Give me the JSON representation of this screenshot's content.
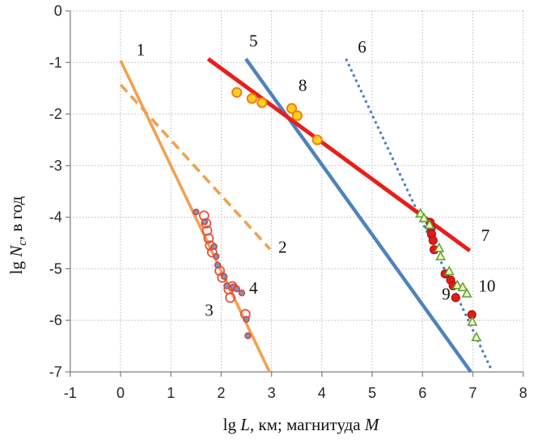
{
  "chart_data": {
    "type": "scatter",
    "title": "",
    "xlabel": "lg L, км; магнитуда M",
    "ylabel": "lg Nc, в год",
    "xlabel_parts": [
      {
        "t": "lg "
      },
      {
        "t": "L",
        "i": true
      },
      {
        "t": ", км; магнитуда "
      },
      {
        "t": "M",
        "i": true
      }
    ],
    "ylabel_parts": [
      {
        "t": "lg "
      },
      {
        "t": "N",
        "i": true
      },
      {
        "t": "c",
        "i": true,
        "sub": true
      },
      {
        "t": ", в год"
      }
    ],
    "xlim": [
      -1,
      8
    ],
    "ylim": [
      -7,
      0
    ],
    "xticks": [
      -1,
      0,
      1,
      2,
      3,
      4,
      5,
      6,
      7,
      8
    ],
    "yticks": [
      0,
      -1,
      -2,
      -3,
      -4,
      -5,
      -6,
      -7
    ],
    "grid": "dotted",
    "legend_position": "none",
    "colors": {
      "orange": "#F0A14F",
      "blue": "#4F81BD",
      "red": "#E81E1C",
      "grid": "#B3B3B3",
      "axis": "#8C8C8C"
    },
    "lines": [
      {
        "label": "1",
        "style": "solid",
        "color": "#F0A14F",
        "width": 3.6,
        "points": [
          [
            0,
            -0.96
          ],
          [
            2.96,
            -7.0
          ]
        ],
        "label_pos": [
          0.4,
          -0.75
        ]
      },
      {
        "label": "2",
        "style": "dashed",
        "color": "#F0A14F",
        "width": 3.6,
        "points": [
          [
            0,
            -1.43
          ],
          [
            2.97,
            -4.62
          ]
        ],
        "label_pos": [
          3.22,
          -4.58
        ]
      },
      {
        "label": "5",
        "style": "solid",
        "color": "#4F81BD",
        "width": 4.4,
        "points": [
          [
            2.49,
            -0.93
          ],
          [
            6.96,
            -7.0
          ]
        ],
        "label_pos": [
          2.64,
          -0.58
        ]
      },
      {
        "label": "6",
        "style": "dotted",
        "color": "#4F81BD",
        "width": 3.4,
        "points": [
          [
            4.49,
            -0.95
          ],
          [
            7.38,
            -6.98
          ]
        ],
        "label_pos": [
          4.8,
          -0.7
        ]
      },
      {
        "label": "7",
        "style": "solid",
        "color": "#E81E1C",
        "width": 5.0,
        "points": [
          [
            1.74,
            -0.93
          ],
          [
            6.94,
            -4.65
          ]
        ],
        "label_pos": [
          7.25,
          -4.35
        ]
      }
    ],
    "series": [
      {
        "label": "3",
        "name": "open-red-circles",
        "marker": "open-circle",
        "r": 5.5,
        "stroke": "#E8513C",
        "stroke_width": 1.8,
        "fill": "none",
        "points": [
          [
            1.66,
            -3.97
          ],
          [
            1.7,
            -4.12
          ],
          [
            1.72,
            -4.26
          ],
          [
            1.75,
            -4.41
          ],
          [
            1.78,
            -4.55
          ],
          [
            1.82,
            -4.68
          ],
          [
            1.97,
            -5.04
          ],
          [
            2.02,
            -5.17
          ],
          [
            2.15,
            -5.4
          ],
          [
            2.18,
            -5.56
          ],
          [
            2.22,
            -5.34
          ],
          [
            2.48,
            -5.88
          ]
        ],
        "label_pos": [
          1.76,
          -5.8
        ]
      },
      {
        "label": "4",
        "name": "small-gray-blue-dots",
        "marker": "circle",
        "r": 3.4,
        "stroke": "#D2453A",
        "stroke_width": 1.6,
        "fill": "#7C96C2",
        "points": [
          [
            1.5,
            -3.9
          ],
          [
            1.67,
            -4.09
          ],
          [
            1.86,
            -4.57
          ],
          [
            1.9,
            -4.76
          ],
          [
            1.93,
            -4.93
          ],
          [
            2.06,
            -5.15
          ],
          [
            2.11,
            -5.33
          ],
          [
            2.24,
            -5.35
          ],
          [
            2.31,
            -5.39
          ],
          [
            2.41,
            -5.47
          ],
          [
            2.5,
            -5.98
          ],
          [
            2.53,
            -6.3
          ]
        ],
        "label_pos": [
          2.64,
          -5.37
        ]
      },
      {
        "label": "8",
        "name": "yellow-circles",
        "marker": "circle",
        "r": 5.6,
        "stroke": "#F07E16",
        "stroke_width": 2.0,
        "fill": "#FFD21E",
        "points": [
          [
            2.31,
            -1.58
          ],
          [
            2.61,
            -1.7
          ],
          [
            2.81,
            -1.78
          ],
          [
            3.4,
            -1.89
          ],
          [
            3.51,
            -2.03
          ],
          [
            3.91,
            -2.5
          ]
        ],
        "label_pos": [
          3.62,
          -1.44
        ]
      },
      {
        "label": "9",
        "name": "red-filled-circles",
        "marker": "circle",
        "r": 5.0,
        "stroke": "#B01210",
        "stroke_width": 1.2,
        "fill": "#E21B17",
        "points": [
          [
            6.15,
            -4.1
          ],
          [
            6.17,
            -4.22
          ],
          [
            6.18,
            -4.33
          ],
          [
            6.21,
            -4.45
          ],
          [
            6.23,
            -4.63
          ],
          [
            6.45,
            -5.1
          ],
          [
            6.56,
            -5.22
          ],
          [
            6.61,
            -5.33
          ],
          [
            6.66,
            -5.56
          ],
          [
            6.98,
            -5.89
          ]
        ],
        "label_pos": [
          6.47,
          -5.49
        ]
      },
      {
        "label": "10",
        "name": "green-open-triangles",
        "marker": "triangle",
        "r": 5.5,
        "stroke": "#56A036",
        "stroke_width": 1.5,
        "fill": "#F2F7BE",
        "points": [
          [
            5.96,
            -3.93
          ],
          [
            6.03,
            -4.02
          ],
          [
            6.14,
            -4.15
          ],
          [
            6.33,
            -4.6
          ],
          [
            6.36,
            -4.76
          ],
          [
            6.53,
            -5.05
          ],
          [
            6.69,
            -5.32
          ],
          [
            6.8,
            -5.36
          ],
          [
            6.88,
            -5.48
          ],
          [
            6.99,
            -6.03
          ],
          [
            7.07,
            -6.33
          ]
        ],
        "label_pos": [
          7.28,
          -5.33
        ]
      }
    ]
  }
}
